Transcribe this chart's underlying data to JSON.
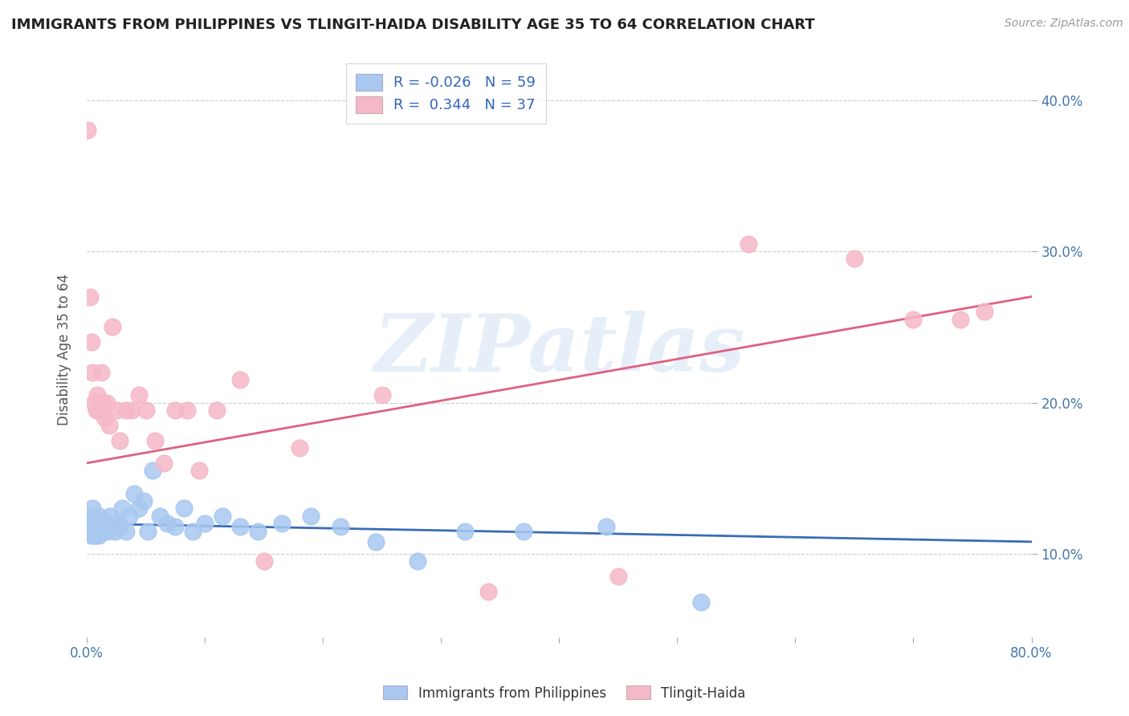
{
  "title": "IMMIGRANTS FROM PHILIPPINES VS TLINGIT-HAIDA DISABILITY AGE 35 TO 64 CORRELATION CHART",
  "source": "Source: ZipAtlas.com",
  "ylabel": "Disability Age 35 to 64",
  "legend_label_1": "Immigrants from Philippines",
  "legend_label_2": "Tlingit-Haida",
  "r1": -0.026,
  "n1": 59,
  "r2": 0.344,
  "n2": 37,
  "color1": "#a8c8f0",
  "color2": "#f5b8c8",
  "line_color1": "#3a6cb5",
  "line_color2": "#e06080",
  "watermark": "ZIPatlas",
  "xlim": [
    0.0,
    0.8
  ],
  "ylim": [
    0.045,
    0.425
  ],
  "xticks": [
    0.0,
    0.1,
    0.2,
    0.3,
    0.4,
    0.5,
    0.6,
    0.7,
    0.8
  ],
  "yticks": [
    0.1,
    0.2,
    0.3,
    0.4
  ],
  "scatter1_x": [
    0.001,
    0.002,
    0.002,
    0.003,
    0.003,
    0.004,
    0.004,
    0.005,
    0.005,
    0.005,
    0.006,
    0.006,
    0.006,
    0.007,
    0.007,
    0.008,
    0.008,
    0.009,
    0.009,
    0.01,
    0.01,
    0.011,
    0.012,
    0.013,
    0.014,
    0.015,
    0.016,
    0.018,
    0.02,
    0.022,
    0.024,
    0.026,
    0.028,
    0.03,
    0.033,
    0.036,
    0.04,
    0.044,
    0.048,
    0.052,
    0.056,
    0.062,
    0.068,
    0.075,
    0.082,
    0.09,
    0.1,
    0.115,
    0.13,
    0.145,
    0.165,
    0.19,
    0.215,
    0.245,
    0.28,
    0.32,
    0.37,
    0.44,
    0.52
  ],
  "scatter1_y": [
    0.12,
    0.118,
    0.122,
    0.115,
    0.125,
    0.118,
    0.112,
    0.115,
    0.12,
    0.13,
    0.112,
    0.118,
    0.115,
    0.122,
    0.118,
    0.112,
    0.12,
    0.115,
    0.118,
    0.112,
    0.125,
    0.118,
    0.115,
    0.122,
    0.115,
    0.118,
    0.12,
    0.115,
    0.125,
    0.118,
    0.115,
    0.12,
    0.118,
    0.13,
    0.115,
    0.125,
    0.14,
    0.13,
    0.135,
    0.115,
    0.155,
    0.125,
    0.12,
    0.118,
    0.13,
    0.115,
    0.12,
    0.125,
    0.118,
    0.115,
    0.12,
    0.125,
    0.118,
    0.108,
    0.095,
    0.115,
    0.115,
    0.118,
    0.068
  ],
  "scatter2_x": [
    0.001,
    0.003,
    0.004,
    0.005,
    0.006,
    0.008,
    0.009,
    0.01,
    0.012,
    0.013,
    0.015,
    0.017,
    0.019,
    0.022,
    0.025,
    0.028,
    0.033,
    0.038,
    0.044,
    0.05,
    0.058,
    0.065,
    0.075,
    0.085,
    0.095,
    0.11,
    0.13,
    0.15,
    0.18,
    0.25,
    0.34,
    0.45,
    0.56,
    0.65,
    0.7,
    0.74,
    0.76
  ],
  "scatter2_y": [
    0.38,
    0.27,
    0.24,
    0.22,
    0.2,
    0.195,
    0.205,
    0.195,
    0.22,
    0.2,
    0.19,
    0.2,
    0.185,
    0.25,
    0.195,
    0.175,
    0.195,
    0.195,
    0.205,
    0.195,
    0.175,
    0.16,
    0.195,
    0.195,
    0.155,
    0.195,
    0.215,
    0.095,
    0.17,
    0.205,
    0.075,
    0.085,
    0.305,
    0.295,
    0.255,
    0.255,
    0.26
  ],
  "trend1_x0": 0.0,
  "trend1_y0": 0.12,
  "trend1_x1": 0.8,
  "trend1_y1": 0.108,
  "trend2_x0": 0.0,
  "trend2_y0": 0.16,
  "trend2_x1": 0.8,
  "trend2_y1": 0.27
}
